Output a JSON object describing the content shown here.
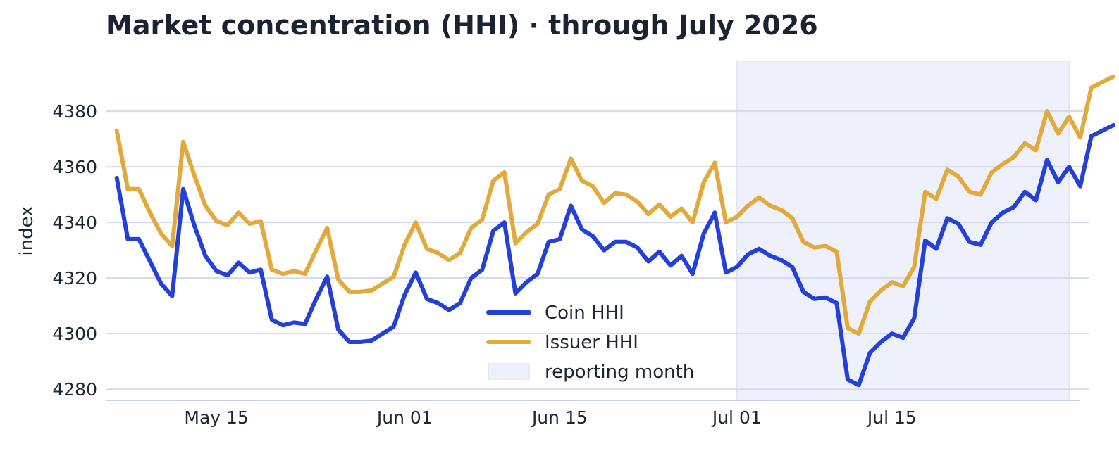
{
  "chart_data": {
    "type": "line",
    "title": "Market concentration (HHI) · through July 2026",
    "xlabel": "",
    "ylabel": "index",
    "x_start": "2026-05-06",
    "x_end": "2026-07-31",
    "xlim": [
      "2026-05-05",
      "2026-08-01"
    ],
    "ylim": [
      4276,
      4398
    ],
    "y_ticks": [
      4280,
      4300,
      4320,
      4340,
      4360,
      4380
    ],
    "x_ticks": [
      {
        "date": "2026-05-15",
        "label": "May 15"
      },
      {
        "date": "2026-06-01",
        "label": "Jun 01"
      },
      {
        "date": "2026-06-15",
        "label": "Jun 15"
      },
      {
        "date": "2026-07-01",
        "label": "Jul 01"
      },
      {
        "date": "2026-07-15",
        "label": "Jul 15"
      }
    ],
    "grid": "horizontal",
    "legend_position": "bottom-center",
    "highlight": {
      "label": "reporting month",
      "from": "2026-07-01",
      "to": "2026-07-31",
      "color": "#eef1fb"
    },
    "series": [
      {
        "name": "Coin HHI",
        "color": "#2340d8",
        "values": [
          4356,
          4334,
          4334,
          4326,
          4318,
          4313.5,
          4352,
          4339,
          4328,
          4322.5,
          4321,
          4325.5,
          4322,
          4323,
          4305,
          4303,
          4304,
          4303.5,
          4312.5,
          4320.5,
          4301.5,
          4297,
          4297,
          4297.5,
          4300,
          4302.5,
          4314,
          4322,
          4312.5,
          4311,
          4308.5,
          4311,
          4320,
          4323,
          4337,
          4340,
          4314.5,
          4318.5,
          4321.5,
          4333,
          4334,
          4346,
          4337.5,
          4335,
          4330,
          4333,
          4333,
          4331,
          4326,
          4329.5,
          4324.5,
          4328,
          4321.5,
          4336,
          4343.5,
          4322,
          4324,
          4328.5,
          4330.5,
          4328,
          4326.5,
          4324,
          4315,
          4312.5,
          4313,
          4311,
          4283.5,
          4281.5,
          4293,
          4297,
          4300,
          4298.5,
          4305.5,
          4333.5,
          4330.5,
          4341.5,
          4339.5,
          4333,
          4332,
          4340,
          4343.5,
          4345.5,
          4351,
          4348,
          4362.5,
          4354.5,
          4360,
          4353,
          4371,
          4373,
          4375
        ]
      },
      {
        "name": "Issuer HHI",
        "color": "#e2a93c",
        "values": [
          4373,
          4352,
          4352,
          4343.5,
          4336,
          4331.5,
          4369,
          4357,
          4346,
          4340.5,
          4339,
          4343.5,
          4339.5,
          4340.5,
          4323,
          4321.5,
          4322.5,
          4321.5,
          4330,
          4338,
          4319.5,
          4315,
          4315,
          4315.5,
          4318,
          4320.5,
          4332,
          4340,
          4330.5,
          4329,
          4326.5,
          4329,
          4338,
          4341,
          4355,
          4358,
          4332.5,
          4336.5,
          4339.5,
          4350,
          4352,
          4363,
          4355,
          4353,
          4347,
          4350.5,
          4350,
          4347.5,
          4343,
          4346.5,
          4342,
          4345,
          4340,
          4354.5,
          4361.5,
          4340,
          4342,
          4346,
          4349,
          4346,
          4344.5,
          4341.5,
          4333,
          4331,
          4331.5,
          4329.5,
          4302,
          4300,
          4311.5,
          4315.5,
          4318.5,
          4317,
          4324,
          4351,
          4348.5,
          4359,
          4356.5,
          4351,
          4350,
          4358,
          4361,
          4363.5,
          4368.5,
          4366,
          4380,
          4372,
          4378,
          4370.5,
          4388.5,
          4390.5,
          4392.5
        ]
      }
    ]
  }
}
